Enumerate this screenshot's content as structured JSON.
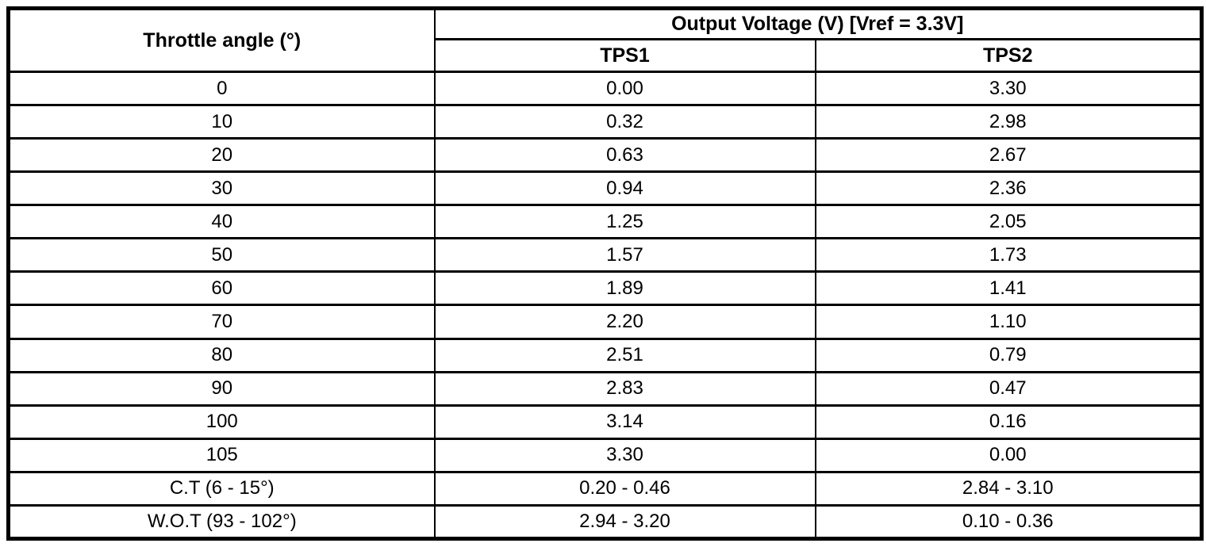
{
  "page": {
    "background_color": "#ffffff",
    "line_color": "#000000"
  },
  "table": {
    "col1_header": "Throttle angle (°)",
    "group_header": "Output Voltage (V) [Vref = 3.3V]",
    "sub_headers": [
      "TPS1",
      "TPS2"
    ],
    "rows": [
      [
        "0",
        "0.00",
        "3.30"
      ],
      [
        "10",
        "0.32",
        "2.98"
      ],
      [
        "20",
        "0.63",
        "2.67"
      ],
      [
        "30",
        "0.94",
        "2.36"
      ],
      [
        "40",
        "1.25",
        "2.05"
      ],
      [
        "50",
        "1.57",
        "1.73"
      ],
      [
        "60",
        "1.89",
        "1.41"
      ],
      [
        "70",
        "2.20",
        "1.10"
      ],
      [
        "80",
        "2.51",
        "0.79"
      ],
      [
        "90",
        "2.83",
        "0.47"
      ],
      [
        "100",
        "3.14",
        "0.16"
      ],
      [
        "105",
        "3.30",
        "0.00"
      ],
      [
        "C.T (6 - 15°)",
        "0.20 - 0.46",
        "2.84 - 3.10"
      ],
      [
        "W.O.T (93 - 102°)",
        "2.94 - 3.20",
        "0.10 - 0.36"
      ]
    ]
  },
  "chart_data": {
    "type": "table",
    "title": "Output Voltage (V) [Vref = 3.3V]",
    "columns": [
      "Throttle angle (°)",
      "TPS1",
      "TPS2"
    ],
    "rows": [
      [
        "0",
        "0.00",
        "3.30"
      ],
      [
        "10",
        "0.32",
        "2.98"
      ],
      [
        "20",
        "0.63",
        "2.67"
      ],
      [
        "30",
        "0.94",
        "2.36"
      ],
      [
        "40",
        "1.25",
        "2.05"
      ],
      [
        "50",
        "1.57",
        "1.73"
      ],
      [
        "60",
        "1.89",
        "1.41"
      ],
      [
        "70",
        "2.20",
        "1.10"
      ],
      [
        "80",
        "2.51",
        "0.79"
      ],
      [
        "90",
        "2.83",
        "0.47"
      ],
      [
        "100",
        "3.14",
        "0.16"
      ],
      [
        "105",
        "3.30",
        "0.00"
      ],
      [
        "C.T (6 - 15°)",
        "0.20 - 0.46",
        "2.84 - 3.10"
      ],
      [
        "W.O.T (93 - 102°)",
        "2.94 - 3.20",
        "0.10 - 0.36"
      ]
    ]
  }
}
